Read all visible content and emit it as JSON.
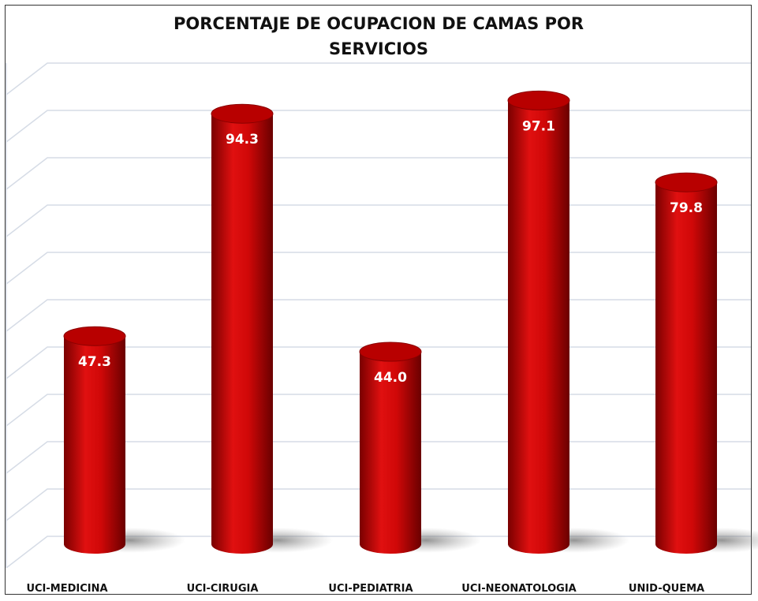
{
  "chart_data": {
    "type": "cylinder-bar",
    "title": "PORCENTAJE DE OCUPACION DE CAMAS POR SERVICIOS",
    "categories": [
      "UCI-MEDICINA",
      "UCI-CIRUGIA",
      "UCI-PEDIATRIA",
      "UCI-NEONATOLOGIA",
      "UNID-QUEMA"
    ],
    "values": [
      47.3,
      94.3,
      44.0,
      97.1,
      79.8
    ],
    "value_labels": [
      "47.3",
      "94.3",
      "44.0",
      "97.1",
      "79.8"
    ],
    "color": "#c00000",
    "ylim": [
      0,
      100
    ],
    "yticks": [
      0,
      10,
      20,
      30,
      40,
      50,
      60,
      70,
      80,
      90,
      100
    ],
    "grid": true
  }
}
